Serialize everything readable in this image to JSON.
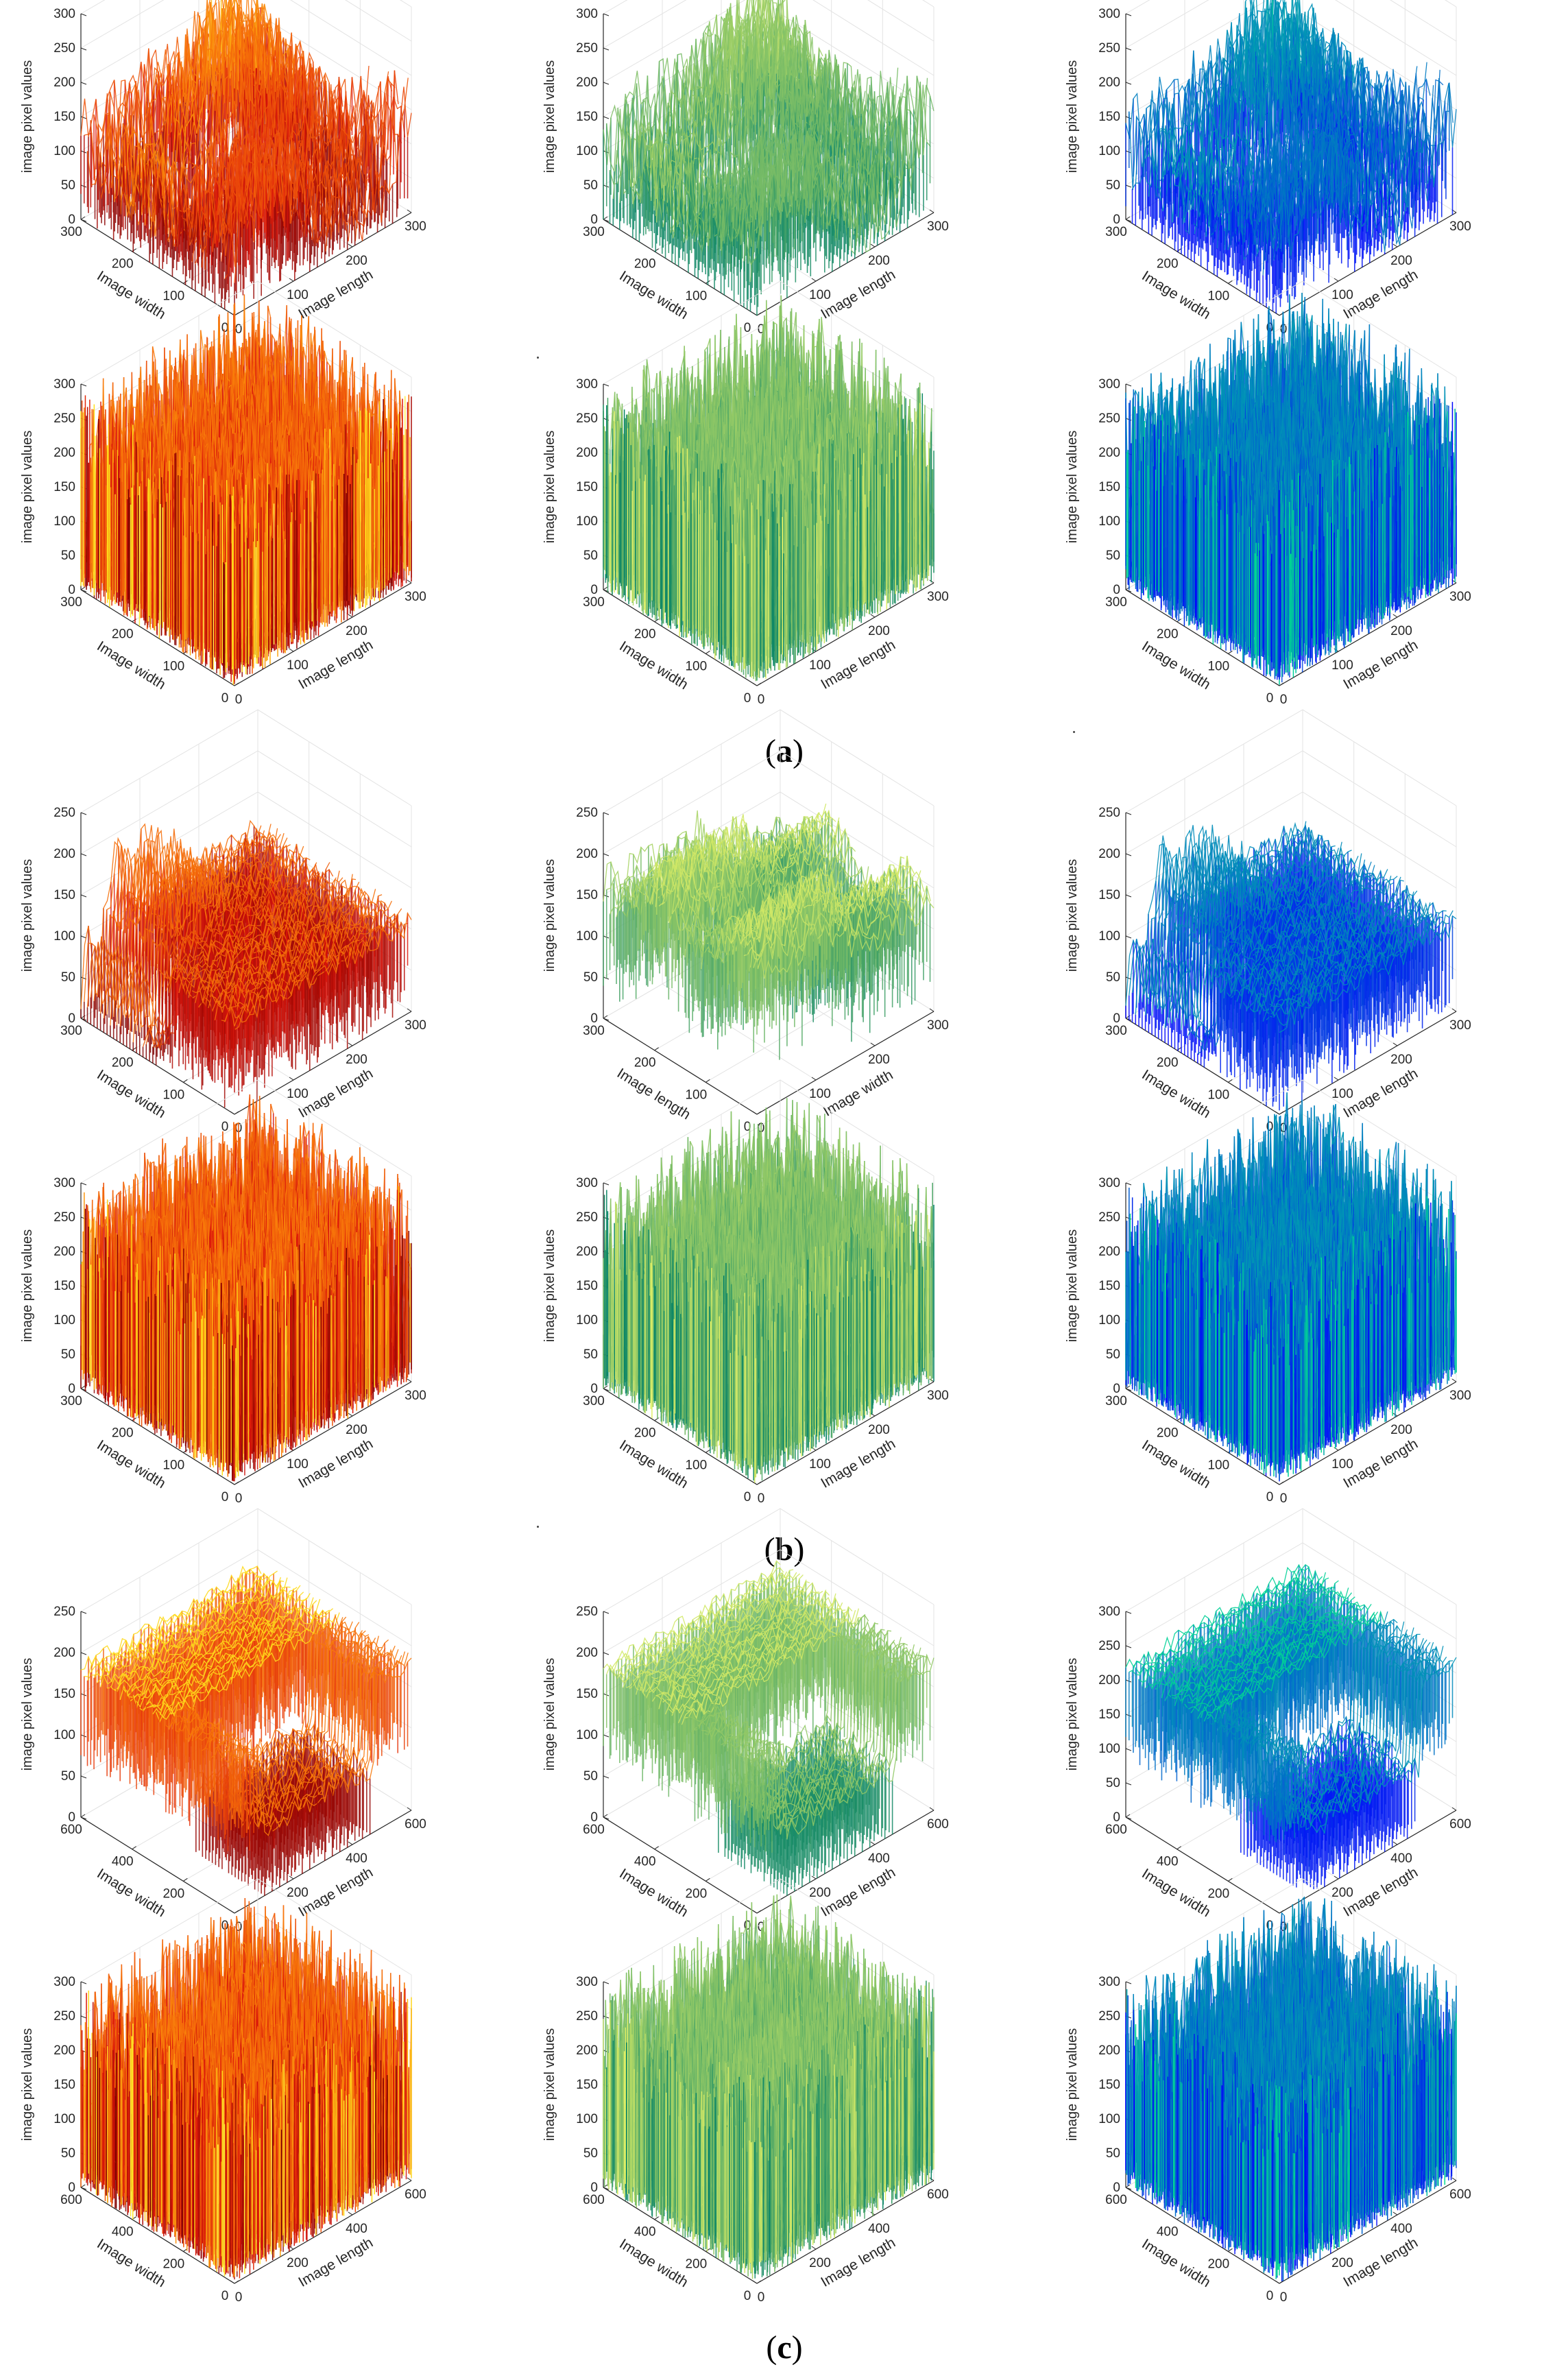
{
  "figure": {
    "panel_labels": [
      "a",
      "b",
      "c"
    ]
  },
  "chart_data": [
    {
      "type": "surface",
      "panel": "a",
      "row": "original",
      "colormap": "hot",
      "zlabel": "image pixel values",
      "xlabel": "Image length",
      "ylabel": "Image width",
      "xlim": [
        0,
        300
      ],
      "ylim": [
        0,
        300
      ],
      "zlim": [
        0,
        300
      ],
      "xticks": [
        "0",
        "100",
        "200",
        "300"
      ],
      "yticks": [
        "0",
        "100",
        "200",
        "300"
      ],
      "zticks": [
        "0",
        "50",
        "100",
        "150",
        "200",
        "250",
        "300"
      ],
      "surface": "structured",
      "x_axis": "Image length",
      "y_axis": "Image width",
      "grid": true
    },
    {
      "type": "surface",
      "panel": "a",
      "row": "original",
      "colormap": "summer",
      "zlabel": "image pixel values",
      "xlabel": "Image length",
      "ylabel": "Image width",
      "xlim": [
        0,
        300
      ],
      "ylim": [
        0,
        300
      ],
      "zlim": [
        0,
        300
      ],
      "xticks": [
        "0",
        "100",
        "200",
        "300"
      ],
      "yticks": [
        "0",
        "100",
        "200",
        "300"
      ],
      "zticks": [
        "0",
        "50",
        "100",
        "150",
        "200",
        "250",
        "300"
      ],
      "surface": "structured",
      "x_axis": "Image length",
      "y_axis": "Image width",
      "grid": true
    },
    {
      "type": "surface",
      "panel": "a",
      "row": "original",
      "colormap": "winter",
      "zlabel": "image pixel values",
      "xlabel": "Image length",
      "ylabel": "Image width",
      "xlim": [
        0,
        300
      ],
      "ylim": [
        0,
        300
      ],
      "zlim": [
        0,
        300
      ],
      "xticks": [
        "0",
        "100",
        "200",
        "300"
      ],
      "yticks": [
        "0",
        "100",
        "200",
        "300"
      ],
      "zticks": [
        "0",
        "50",
        "100",
        "150",
        "200",
        "250",
        "300"
      ],
      "surface": "structured",
      "x_axis": "Image length",
      "y_axis": "Image width",
      "grid": true
    },
    {
      "type": "surface",
      "panel": "a",
      "row": "encrypted",
      "colormap": "hot",
      "zlabel": "image pixel values",
      "xlabel": "Image length",
      "ylabel": "Image width",
      "xlim": [
        0,
        300
      ],
      "ylim": [
        0,
        300
      ],
      "zlim": [
        0,
        300
      ],
      "xticks": [
        "0",
        "100",
        "200",
        "300"
      ],
      "yticks": [
        "0",
        "100",
        "200",
        "300"
      ],
      "zticks": [
        "0",
        "50",
        "100",
        "150",
        "200",
        "250",
        "300"
      ],
      "surface": "noise",
      "x_axis": "Image length",
      "y_axis": "Image width",
      "grid": true
    },
    {
      "type": "surface",
      "panel": "a",
      "row": "encrypted",
      "colormap": "summer",
      "zlabel": "image pixel values",
      "xlabel": "Image length",
      "ylabel": "Image width",
      "xlim": [
        0,
        300
      ],
      "ylim": [
        0,
        300
      ],
      "zlim": [
        0,
        300
      ],
      "xticks": [
        "0",
        "100",
        "200",
        "300"
      ],
      "yticks": [
        "0",
        "100",
        "200",
        "300"
      ],
      "zticks": [
        "0",
        "50",
        "100",
        "150",
        "200",
        "250",
        "300"
      ],
      "surface": "noise",
      "x_axis": "Image length",
      "y_axis": "Image width",
      "grid": true
    },
    {
      "type": "surface",
      "panel": "a",
      "row": "encrypted",
      "colormap": "winter",
      "zlabel": "image pixel values",
      "xlabel": "Image length",
      "ylabel": "Image width",
      "xlim": [
        0,
        300
      ],
      "ylim": [
        0,
        300
      ],
      "zlim": [
        0,
        300
      ],
      "xticks": [
        "0",
        "100",
        "200",
        "300"
      ],
      "yticks": [
        "0",
        "100",
        "200",
        "300"
      ],
      "zticks": [
        "0",
        "50",
        "100",
        "150",
        "200",
        "250",
        "300"
      ],
      "surface": "noise",
      "x_axis": "Image length",
      "y_axis": "Image width",
      "grid": true
    },
    {
      "type": "surface",
      "panel": "b",
      "row": "original",
      "colormap": "hot",
      "zlabel": "image pixel values",
      "xlabel": "Image length",
      "ylabel": "Image width",
      "xlim": [
        0,
        300
      ],
      "ylim": [
        0,
        300
      ],
      "zlim": [
        0,
        250
      ],
      "xticks": [
        "0",
        "100",
        "200",
        "300"
      ],
      "yticks": [
        "0",
        "100",
        "200",
        "300"
      ],
      "zticks": [
        "0",
        "50",
        "100",
        "150",
        "200",
        "250"
      ],
      "surface": "flat",
      "x_axis": "Image length",
      "y_axis": "Image width",
      "grid": true
    },
    {
      "type": "surface",
      "panel": "b",
      "row": "original",
      "colormap": "summer",
      "zlabel": "image pixel values",
      "xlabel": "Image width",
      "ylabel": "Image length",
      "xlim": [
        0,
        300
      ],
      "ylim": [
        0,
        300
      ],
      "zlim": [
        0,
        250
      ],
      "xticks": [
        "0",
        "100",
        "200",
        "300"
      ],
      "yticks": [
        "0",
        "100",
        "200",
        "300"
      ],
      "zticks": [
        "0",
        "50",
        "100",
        "150",
        "200",
        "250"
      ],
      "x_reversed": true,
      "surface": "rotated",
      "x_axis": "Image width",
      "y_axis": "Image length",
      "grid": true
    },
    {
      "type": "surface",
      "panel": "b",
      "row": "original",
      "colormap": "winter",
      "zlabel": "image pixel values",
      "xlabel": "Image length",
      "ylabel": "Image width",
      "xlim": [
        0,
        300
      ],
      "ylim": [
        0,
        300
      ],
      "zlim": [
        0,
        250
      ],
      "xticks": [
        "0",
        "100",
        "200",
        "300"
      ],
      "yticks": [
        "0",
        "100",
        "200",
        "300"
      ],
      "zticks": [
        "0",
        "50",
        "100",
        "150",
        "200",
        "250"
      ],
      "surface": "flat",
      "x_axis": "Image length",
      "y_axis": "Image width",
      "grid": true
    },
    {
      "type": "surface",
      "panel": "b",
      "row": "encrypted",
      "colormap": "hot",
      "zlabel": "image pixel values",
      "xlabel": "Image length",
      "ylabel": "Image width",
      "xlim": [
        0,
        300
      ],
      "ylim": [
        0,
        300
      ],
      "zlim": [
        0,
        300
      ],
      "xticks": [
        "0",
        "100",
        "200",
        "300"
      ],
      "yticks": [
        "0",
        "100",
        "200",
        "300"
      ],
      "zticks": [
        "0",
        "50",
        "100",
        "150",
        "200",
        "250",
        "300"
      ],
      "surface": "noise",
      "x_axis": "Image length",
      "y_axis": "Image width",
      "grid": true
    },
    {
      "type": "surface",
      "panel": "b",
      "row": "encrypted",
      "colormap": "summer",
      "zlabel": "image pixel values",
      "xlabel": "Image length",
      "ylabel": "Image width",
      "xlim": [
        0,
        300
      ],
      "ylim": [
        0,
        300
      ],
      "zlim": [
        0,
        300
      ],
      "xticks": [
        "0",
        "100",
        "200",
        "300"
      ],
      "yticks": [
        "0",
        "100",
        "200",
        "300"
      ],
      "zticks": [
        "0",
        "50",
        "100",
        "150",
        "200",
        "250",
        "300"
      ],
      "surface": "noise",
      "x_axis": "Image length",
      "y_axis": "Image width",
      "grid": true
    },
    {
      "type": "surface",
      "panel": "b",
      "row": "encrypted",
      "colormap": "winter",
      "zlabel": "image pixel values",
      "xlabel": "Image length",
      "ylabel": "Image width",
      "xlim": [
        0,
        300
      ],
      "ylim": [
        0,
        300
      ],
      "zlim": [
        0,
        300
      ],
      "xticks": [
        "0",
        "100",
        "200",
        "300"
      ],
      "yticks": [
        "0",
        "100",
        "200",
        "300"
      ],
      "zticks": [
        "0",
        "50",
        "100",
        "150",
        "200",
        "250",
        "300"
      ],
      "surface": "noise",
      "x_axis": "Image length",
      "y_axis": "Image width",
      "grid": true
    },
    {
      "type": "surface",
      "panel": "c",
      "row": "original",
      "colormap": "hot",
      "zlabel": "image pixel values",
      "xlabel": "Image length",
      "ylabel": "Image width",
      "xlim": [
        0,
        600
      ],
      "ylim": [
        0,
        600
      ],
      "zlim": [
        0,
        250
      ],
      "xticks": [
        "0",
        "200",
        "400",
        "600"
      ],
      "yticks": [
        "0",
        "200",
        "400",
        "600"
      ],
      "zticks": [
        "0",
        "50",
        "100",
        "150",
        "200",
        "250"
      ],
      "surface": "plateau",
      "x_axis": "Image length",
      "y_axis": "Image width",
      "grid": true
    },
    {
      "type": "surface",
      "panel": "c",
      "row": "original",
      "colormap": "summer",
      "zlabel": "image pixel values",
      "xlabel": "Image length",
      "ylabel": "Image width",
      "xlim": [
        0,
        600
      ],
      "ylim": [
        0,
        600
      ],
      "zlim": [
        0,
        250
      ],
      "xticks": [
        "0",
        "200",
        "400",
        "600"
      ],
      "yticks": [
        "0",
        "200",
        "400",
        "600"
      ],
      "zticks": [
        "0",
        "50",
        "100",
        "150",
        "200",
        "250"
      ],
      "surface": "plateau",
      "x_axis": "Image length",
      "y_axis": "Image width",
      "grid": true
    },
    {
      "type": "surface",
      "panel": "c",
      "row": "original",
      "colormap": "winter",
      "zlabel": "image pixel values",
      "xlabel": "Image length",
      "ylabel": "Image width",
      "xlim": [
        0,
        600
      ],
      "ylim": [
        0,
        600
      ],
      "zlim": [
        0,
        300
      ],
      "xticks": [
        "0",
        "200",
        "400",
        "600"
      ],
      "yticks": [
        "0",
        "200",
        "400",
        "600"
      ],
      "zticks": [
        "0",
        "50",
        "100",
        "150",
        "200",
        "250",
        "300"
      ],
      "surface": "plateau",
      "x_axis": "Image length",
      "y_axis": "Image width",
      "grid": true
    },
    {
      "type": "surface",
      "panel": "c",
      "row": "encrypted",
      "colormap": "hot",
      "zlabel": "image pixel values",
      "xlabel": "Image length",
      "ylabel": "Image width",
      "xlim": [
        0,
        600
      ],
      "ylim": [
        0,
        600
      ],
      "zlim": [
        0,
        300
      ],
      "xticks": [
        "0",
        "200",
        "400",
        "600"
      ],
      "yticks": [
        "0",
        "200",
        "400",
        "600"
      ],
      "zticks": [
        "0",
        "50",
        "100",
        "150",
        "200",
        "250",
        "300"
      ],
      "surface": "noise",
      "x_axis": "Image length",
      "y_axis": "Image width",
      "grid": true
    },
    {
      "type": "surface",
      "panel": "c",
      "row": "encrypted",
      "colormap": "summer",
      "zlabel": "image pixel values",
      "xlabel": "Image length",
      "ylabel": "Image width",
      "xlim": [
        0,
        600
      ],
      "ylim": [
        0,
        600
      ],
      "zlim": [
        0,
        300
      ],
      "xticks": [
        "0",
        "200",
        "400",
        "600"
      ],
      "yticks": [
        "0",
        "200",
        "400",
        "600"
      ],
      "zticks": [
        "0",
        "50",
        "100",
        "150",
        "200",
        "250",
        "300"
      ],
      "surface": "noise",
      "x_axis": "Image length",
      "y_axis": "Image width",
      "grid": true
    },
    {
      "type": "surface",
      "panel": "c",
      "row": "encrypted",
      "colormap": "winter",
      "zlabel": "image pixel values",
      "xlabel": "Image length",
      "ylabel": "Image width",
      "xlim": [
        0,
        600
      ],
      "ylim": [
        0,
        600
      ],
      "zlim": [
        0,
        300
      ],
      "xticks": [
        "0",
        "200",
        "400",
        "600"
      ],
      "yticks": [
        "0",
        "200",
        "400",
        "600"
      ],
      "zticks": [
        "0",
        "50",
        "100",
        "150",
        "200",
        "250",
        "300"
      ],
      "surface": "noise",
      "x_axis": "Image length",
      "y_axis": "Image width",
      "grid": true
    }
  ]
}
